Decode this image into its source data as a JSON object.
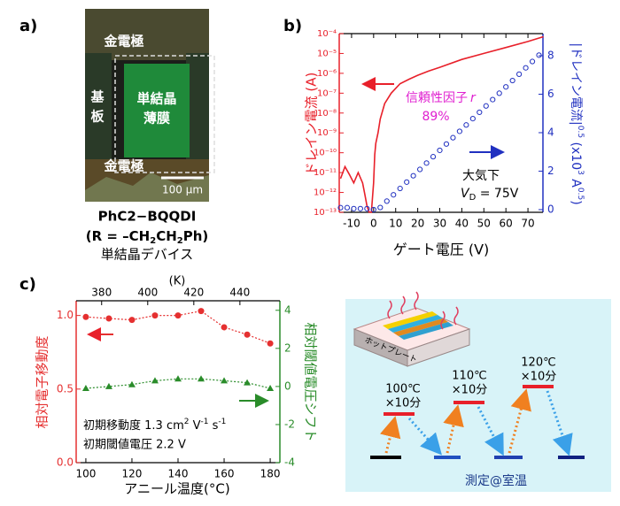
{
  "panel_labels": [
    "a)",
    "b)",
    "c)"
  ],
  "photo": {
    "top_electrode": "金電極",
    "substrate": [
      "基",
      "板"
    ],
    "film": [
      "単結晶",
      "薄膜"
    ],
    "bottom_electrode": "金電極",
    "scale": "100 μm",
    "caption": {
      "name": "PhC2−BQQDI",
      "formula": [
        "(R = –CH",
        "2",
        "CH",
        "2",
        "Ph)"
      ],
      "device": "単結晶デバイス"
    }
  },
  "diagram": {
    "hotplate": "ホットプレート",
    "steps": [
      {
        "temp": "100℃",
        "time": "×10分"
      },
      {
        "temp": "110℃",
        "time": "×10分"
      },
      {
        "temp": "120℃",
        "time": "×10分"
      }
    ],
    "measurement": "測定@室温"
  },
  "chart_data": [
    {
      "type": "line",
      "xlabel": "ゲート電圧 (V)",
      "ylabel": "ドレイン電流 (A)",
      "y2label": [
        "|ドレイン電流|",
        "0.5",
        " (x10",
        "3",
        " A",
        "0.5",
        ")"
      ],
      "xlim": [
        -15.6,
        76.8
      ],
      "xticks": [
        -10,
        0,
        10,
        20,
        30,
        40,
        50,
        60,
        70
      ],
      "yscale": "log",
      "ylim": [
        1e-13,
        0.0001
      ],
      "yticks": [
        {
          "value": 1e-13,
          "label": "10⁻¹³"
        },
        {
          "value": 1e-12,
          "label": "10⁻¹²"
        },
        {
          "value": 1e-11,
          "label": "10⁻¹¹"
        },
        {
          "value": 1e-10,
          "label": "10⁻¹⁰"
        },
        {
          "value": 1e-09,
          "label": "10⁻⁹"
        },
        {
          "value": 1e-08,
          "label": "10⁻⁸"
        },
        {
          "value": 1e-07,
          "label": "10⁻⁷"
        },
        {
          "value": 1e-06,
          "label": "10⁻⁶"
        },
        {
          "value": 1e-05,
          "label": "10⁻⁵"
        },
        {
          "value": 0.0001,
          "label": "10⁻⁴"
        }
      ],
      "y2lim": [
        -0.14,
        9.15
      ],
      "y2ticks": [
        0,
        2,
        4,
        6,
        8
      ],
      "series": [
        {
          "color": "#e8202a",
          "x": [
            -15,
            -13,
            -11,
            -9,
            -7,
            -5,
            -4,
            -3,
            -2,
            -1,
            0,
            0.5,
            1,
            2,
            3,
            5,
            8,
            12,
            16,
            20,
            25,
            30,
            40,
            50,
            60,
            70,
            77
          ],
          "values": [
            5e-12,
            2e-11,
            8e-12,
            3e-12,
            1e-11,
            3e-12,
            8e-13,
            2e-13,
            1e-13,
            1e-13,
            3e-12,
            8e-11,
            3e-10,
            1e-09,
            5e-09,
            3e-08,
            1e-07,
            3e-07,
            5e-07,
            8e-07,
            1.3e-06,
            2e-06,
            5e-06,
            1e-05,
            2e-05,
            4e-05,
            7e-05
          ]
        },
        {
          "color": "#2030c0",
          "axis": "y2",
          "marker": "open-circle",
          "x": [
            -15,
            -12,
            -9,
            -6,
            -3,
            0,
            3,
            6,
            9,
            12,
            15,
            18,
            21,
            24,
            27,
            30,
            33,
            36,
            39,
            42,
            45,
            48,
            51,
            54,
            57,
            60,
            63,
            66,
            69,
            72,
            75
          ],
          "values": [
            0.1,
            0.1,
            0.05,
            0.05,
            0.05,
            0,
            0.11,
            0.44,
            0.77,
            1.1,
            1.43,
            1.76,
            2.09,
            2.42,
            2.75,
            3.08,
            3.41,
            3.74,
            4.07,
            4.4,
            4.73,
            5.06,
            5.39,
            5.72,
            6.05,
            6.38,
            6.71,
            7.04,
            7.37,
            7.7,
            8.03
          ]
        }
      ],
      "annotations": {
        "reliability": [
          "信頼性因子",
          "r"
        ],
        "reliability_value": "89%",
        "atmosphere": "大気下",
        "vd": [
          "V",
          "D",
          " = 75V"
        ]
      }
    },
    {
      "type": "line",
      "xlabel": "アニール温度(°C)",
      "ylabel": "相対電子移動度",
      "y2label": "相対閾値電圧シフト",
      "x2label": "(K)",
      "xlim": [
        95.8,
        184.2
      ],
      "xticks": [
        100,
        120,
        140,
        160,
        180
      ],
      "x2lim": [
        368.95,
        457.35
      ],
      "x2ticks": [
        380,
        400,
        420,
        440
      ],
      "ylim": [
        0,
        1.1
      ],
      "yticks": [
        {
          "value": 0,
          "label": "0.0"
        },
        {
          "value": 0.5,
          "label": "0.5"
        },
        {
          "value": 1,
          "label": "1.0"
        }
      ],
      "y2lim": [
        -4,
        4.5
      ],
      "y2ticks": [
        -4,
        -2,
        0,
        2,
        4
      ],
      "series": [
        {
          "color": "#e53030",
          "marker": "circle",
          "x": [
            100,
            110,
            120,
            130,
            140,
            150,
            160,
            170,
            180
          ],
          "values": [
            0.99,
            0.98,
            0.97,
            1.0,
            1.0,
            1.03,
            0.92,
            0.87,
            0.81
          ]
        },
        {
          "color": "#2a8c2a",
          "marker": "triangle",
          "axis": "y2",
          "x": [
            100,
            110,
            120,
            130,
            140,
            150,
            160,
            170,
            180
          ],
          "values": [
            -0.1,
            0,
            0.1,
            0.3,
            0.4,
            0.4,
            0.3,
            0.2,
            -0.1
          ]
        }
      ],
      "annotations": {
        "mobility": [
          "初期移動度 1.3 cm",
          "2",
          " V",
          "-1",
          " s",
          "-1"
        ],
        "threshold": "初期閾値電圧 2.2 V"
      }
    }
  ]
}
